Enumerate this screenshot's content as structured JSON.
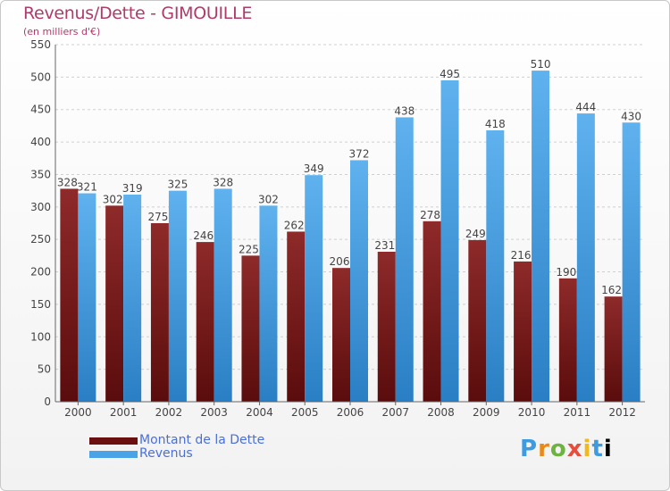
{
  "chart_data": {
    "type": "bar",
    "title": "Revenus/Dette - GIMOUILLE",
    "subtitle": "(en milliers d'€)",
    "categories": [
      "2000",
      "2001",
      "2002",
      "2003",
      "2004",
      "2005",
      "2006",
      "2007",
      "2008",
      "2009",
      "2010",
      "2011",
      "2012"
    ],
    "series": [
      {
        "name": "Montant de la Dette",
        "color": "#7a1a1a",
        "values": [
          328,
          302,
          275,
          246,
          225,
          262,
          206,
          231,
          278,
          249,
          216,
          190,
          162
        ]
      },
      {
        "name": "Revenus",
        "color": "#4aa3e6",
        "values": [
          321,
          319,
          325,
          328,
          302,
          349,
          372,
          438,
          495,
          418,
          510,
          444,
          430
        ]
      }
    ],
    "ylim": [
      0,
      550
    ],
    "yticks": [
      0,
      50,
      100,
      150,
      200,
      250,
      300,
      350,
      400,
      450,
      500,
      550
    ],
    "grid": true,
    "legend_position": "bottom-left"
  },
  "logo": {
    "letters": [
      "P",
      "r",
      "o",
      "x",
      "i",
      "t",
      "i"
    ]
  }
}
